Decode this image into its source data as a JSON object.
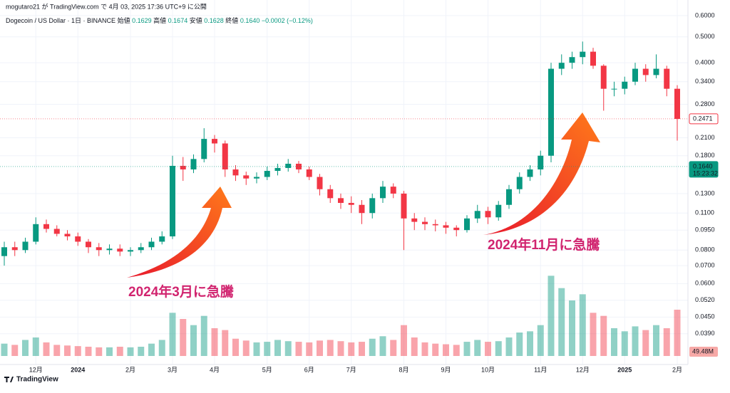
{
  "header": "mogutaro21 が TradingView.com で 4月 03, 2025 17:36 UTC+9 に公開",
  "footer": "TradingView",
  "legend": {
    "symbol": "Dogecoin / US Dollar · 1日 · BINANCE",
    "ohlc": [
      {
        "label": "始値",
        "value": "0.1629"
      },
      {
        "label": "高値",
        "value": "0.1674"
      },
      {
        "label": "安値",
        "value": "0.1628"
      },
      {
        "label": "終値",
        "value": "0.1640"
      }
    ],
    "change": "−0.0002 (−0.12%)"
  },
  "annotations": [
    "2024年3月に急騰",
    "2024年11月に急騰"
  ],
  "chart_data": {
    "type": "candlestick",
    "log_scale": true,
    "grid": true,
    "up_color": "#089981",
    "down_color": "#f23645",
    "categories": [
      null,
      null,
      null,
      "12月",
      null,
      null,
      null,
      "2024",
      null,
      null,
      null,
      null,
      "2月",
      null,
      null,
      null,
      "3月",
      null,
      null,
      null,
      "4月",
      null,
      null,
      null,
      null,
      "5月",
      null,
      null,
      null,
      "6月",
      null,
      null,
      null,
      "7月",
      null,
      null,
      null,
      null,
      "8月",
      null,
      null,
      null,
      "9月",
      null,
      null,
      null,
      "10月",
      null,
      null,
      null,
      null,
      "11月",
      null,
      null,
      null,
      "12月",
      null,
      null,
      null,
      "2025",
      null,
      null,
      null,
      null,
      "2月"
    ],
    "open": [
      0.076,
      0.082,
      0.08,
      0.086,
      0.1,
      0.096,
      0.092,
      0.09,
      0.086,
      0.082,
      0.08,
      0.081,
      0.079,
      0.08,
      0.082,
      0.086,
      0.09,
      0.165,
      0.16,
      0.175,
      0.208,
      0.2,
      0.16,
      0.152,
      0.148,
      0.15,
      0.158,
      0.162,
      0.168,
      0.16,
      0.15,
      0.135,
      0.125,
      0.12,
      0.118,
      0.11,
      0.125,
      0.138,
      0.13,
      0.105,
      0.102,
      0.1,
      0.099,
      0.097,
      0.095,
      0.105,
      0.112,
      0.106,
      0.118,
      0.135,
      0.15,
      0.16,
      0.18,
      0.38,
      0.4,
      0.42,
      0.44,
      0.39,
      0.32,
      0.32,
      0.34,
      0.38,
      0.36,
      0.38,
      0.32
    ],
    "high": [
      0.086,
      0.086,
      0.089,
      0.106,
      0.104,
      0.099,
      0.095,
      0.093,
      0.088,
      0.085,
      0.084,
      0.084,
      0.082,
      0.085,
      0.089,
      0.094,
      0.18,
      0.178,
      0.182,
      0.228,
      0.215,
      0.205,
      0.166,
      0.157,
      0.156,
      0.164,
      0.168,
      0.175,
      0.172,
      0.164,
      0.154,
      0.14,
      0.13,
      0.127,
      0.123,
      0.13,
      0.145,
      0.142,
      0.133,
      0.11,
      0.106,
      0.104,
      0.102,
      0.099,
      0.108,
      0.118,
      0.116,
      0.122,
      0.14,
      0.156,
      0.166,
      0.188,
      0.4,
      0.43,
      0.44,
      0.48,
      0.455,
      0.395,
      0.34,
      0.355,
      0.4,
      0.395,
      0.43,
      0.39,
      0.33
    ],
    "low": [
      0.07,
      0.076,
      0.078,
      0.084,
      0.093,
      0.09,
      0.087,
      0.083,
      0.078,
      0.076,
      0.077,
      0.076,
      0.076,
      0.078,
      0.08,
      0.084,
      0.088,
      0.145,
      0.155,
      0.17,
      0.185,
      0.15,
      0.145,
      0.14,
      0.142,
      0.146,
      0.152,
      0.157,
      0.155,
      0.146,
      0.128,
      0.12,
      0.114,
      0.11,
      0.1,
      0.105,
      0.12,
      0.125,
      0.08,
      0.095,
      0.095,
      0.094,
      0.092,
      0.09,
      0.093,
      0.101,
      0.1,
      0.103,
      0.114,
      0.13,
      0.145,
      0.152,
      0.17,
      0.36,
      0.38,
      0.395,
      0.38,
      0.265,
      0.3,
      0.305,
      0.33,
      0.34,
      0.35,
      0.3,
      0.205
    ],
    "close": [
      0.082,
      0.08,
      0.086,
      0.1,
      0.096,
      0.092,
      0.09,
      0.086,
      0.082,
      0.08,
      0.081,
      0.079,
      0.08,
      0.082,
      0.086,
      0.09,
      0.165,
      0.16,
      0.175,
      0.208,
      0.2,
      0.16,
      0.152,
      0.148,
      0.15,
      0.158,
      0.162,
      0.168,
      0.16,
      0.15,
      0.135,
      0.125,
      0.12,
      0.118,
      0.11,
      0.125,
      0.138,
      0.13,
      0.105,
      0.102,
      0.1,
      0.099,
      0.097,
      0.095,
      0.105,
      0.112,
      0.106,
      0.118,
      0.135,
      0.15,
      0.16,
      0.18,
      0.38,
      0.4,
      0.42,
      0.44,
      0.39,
      0.32,
      0.32,
      0.34,
      0.38,
      0.36,
      0.38,
      0.32,
      0.247
    ],
    "volume": [
      200,
      180,
      260,
      300,
      220,
      180,
      170,
      160,
      150,
      140,
      140,
      150,
      140,
      150,
      200,
      260,
      700,
      600,
      500,
      650,
      450,
      420,
      280,
      250,
      220,
      230,
      260,
      240,
      230,
      220,
      250,
      260,
      240,
      220,
      230,
      280,
      320,
      260,
      500,
      300,
      220,
      200,
      190,
      180,
      230,
      260,
      230,
      240,
      300,
      380,
      400,
      500,
      1300,
      1100,
      900,
      1000,
      700,
      650,
      450,
      400,
      480,
      420,
      500,
      450,
      750
    ],
    "vlim": [
      0,
      1500
    ],
    "volume_label": "49.48M",
    "ylim": [
      0.0303,
      0.686
    ],
    "yticks": [
      {
        "value": 0.6,
        "label": "0.6000"
      },
      {
        "value": 0.5,
        "label": "0.5000"
      },
      {
        "value": 0.4,
        "label": "0.4000"
      },
      {
        "value": 0.34,
        "label": "0.3400"
      },
      {
        "value": 0.28,
        "label": "0.2800"
      },
      {
        "value": 0.21,
        "label": "0.2100"
      },
      {
        "value": 0.18,
        "label": "0.1800"
      },
      {
        "value": 0.13,
        "label": "0.1300"
      },
      {
        "value": 0.11,
        "label": "0.1100"
      },
      {
        "value": 0.095,
        "label": "0.0950"
      },
      {
        "value": 0.08,
        "label": "0.0800"
      },
      {
        "value": 0.07,
        "label": "0.0700"
      },
      {
        "value": 0.06,
        "label": "0.0600"
      },
      {
        "value": 0.052,
        "label": "0.0520"
      },
      {
        "value": 0.045,
        "label": "0.0450"
      },
      {
        "value": 0.039,
        "label": "0.0390"
      }
    ],
    "price_lines": [
      {
        "value": 0.2471,
        "label": "0.2471",
        "color": "#f23645"
      },
      {
        "value": 0.164,
        "label": "0.1640",
        "color": "#089981",
        "countdown": "15:23:32"
      }
    ]
  }
}
